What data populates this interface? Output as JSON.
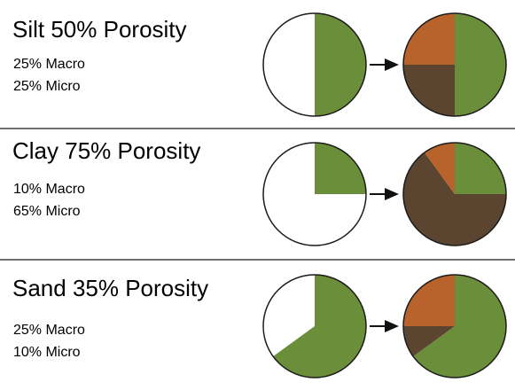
{
  "colors": {
    "solid": "#6b8e3a",
    "macro": "#b8622c",
    "micro": "#5c4530",
    "empty": "#ffffff",
    "outline": "#1a1a1a",
    "arrow": "#111111"
  },
  "rows": [
    {
      "title": "Silt 50% Porosity",
      "macro_label": "25% Macro",
      "micro_label": "25% Micro",
      "porosity_pct": 50,
      "macro_pct": 25,
      "micro_pct": 25
    },
    {
      "title": "Clay 75% Porosity",
      "macro_label": "10% Macro",
      "micro_label": "65% Micro",
      "porosity_pct": 75,
      "macro_pct": 10,
      "micro_pct": 65
    },
    {
      "title": "Sand 35% Porosity",
      "macro_label": "25% Macro",
      "micro_label": "10% Micro",
      "porosity_pct": 35,
      "macro_pct": 25,
      "micro_pct": 10
    }
  ]
}
